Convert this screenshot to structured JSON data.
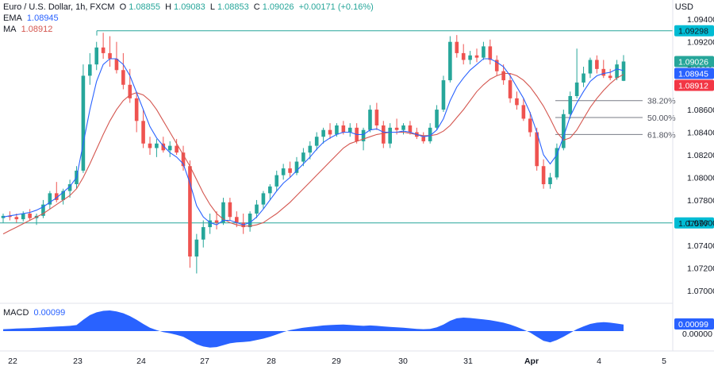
{
  "header": {
    "symbol": "Euro / U.S. Dollar, 1h, FXCM",
    "o_label": "O",
    "o_value": "1.08855",
    "h_label": "H",
    "h_value": "1.09083",
    "l_label": "L",
    "l_value": "1.08853",
    "c_label": "C",
    "c_value": "1.09026",
    "change": "+0.00171 (+0.16%)",
    "ema_label": "EMA",
    "ema_value": "1.08945",
    "ma_label": "MA",
    "ma_value": "1.08912"
  },
  "macd": {
    "label": "MACD",
    "value": "0.00099"
  },
  "chart_data": {
    "type": "candlestick",
    "currency": "USD",
    "y_ticks": [
      "1.09400",
      "1.09200",
      "1.09000",
      "1.08800",
      "1.08600",
      "1.08400",
      "1.08200",
      "1.08000",
      "1.07800",
      "1.07600",
      "1.07400",
      "1.07200",
      "1.07000"
    ],
    "ylim": [
      1.069,
      1.095
    ],
    "x_labels": [
      "22",
      "23",
      "24",
      "27",
      "28",
      "29",
      "30",
      "31",
      "Apr",
      "4",
      "5"
    ],
    "last_price_badges": [
      "1.09026",
      "1.08945",
      "1.08912"
    ],
    "horizontal_levels": [
      {
        "label": "1.09298",
        "value": 1.09298
      },
      {
        "label": "1.07597",
        "value": 1.07597
      }
    ],
    "fibonacci_levels": [
      {
        "label": "38.20%",
        "value": 1.0868
      },
      {
        "label": "50.00%",
        "value": 1.0853
      },
      {
        "label": "61.80%",
        "value": 1.0838
      }
    ],
    "macd_ticks": [
      "0.00000"
    ],
    "ohlc": [
      [
        1.0764,
        1.0768,
        1.076,
        1.0766
      ],
      [
        1.0766,
        1.077,
        1.0762,
        1.0765
      ],
      [
        1.0765,
        1.0768,
        1.076,
        1.0763
      ],
      [
        1.0763,
        1.077,
        1.0761,
        1.0768
      ],
      [
        1.0768,
        1.0772,
        1.0762,
        1.0764
      ],
      [
        1.0764,
        1.0768,
        1.0758,
        1.0766
      ],
      [
        1.0766,
        1.078,
        1.0764,
        1.0776
      ],
      [
        1.0776,
        1.0788,
        1.0772,
        1.0786
      ],
      [
        1.0786,
        1.0796,
        1.0778,
        1.078
      ],
      [
        1.078,
        1.079,
        1.0776,
        1.0788
      ],
      [
        1.0788,
        1.0798,
        1.0782,
        1.0794
      ],
      [
        1.0794,
        1.081,
        1.079,
        1.0806
      ],
      [
        1.0806,
        1.09,
        1.0804,
        1.089
      ],
      [
        1.089,
        1.091,
        1.0882,
        1.09
      ],
      [
        1.09,
        1.092,
        1.0895,
        1.0915
      ],
      [
        1.0915,
        1.0928,
        1.0905,
        1.091
      ],
      [
        1.091,
        1.0925,
        1.0898,
        1.0905
      ],
      [
        1.0905,
        1.092,
        1.0892,
        1.0895
      ],
      [
        1.0895,
        1.091,
        1.0878,
        1.0882
      ],
      [
        1.0882,
        1.0896,
        1.0866,
        1.087
      ],
      [
        1.087,
        1.0876,
        1.084,
        1.085
      ],
      [
        1.085,
        1.086,
        1.0826,
        1.083
      ],
      [
        1.083,
        1.0836,
        1.082,
        1.0826
      ],
      [
        1.0826,
        1.0834,
        1.0818,
        1.083
      ],
      [
        1.083,
        1.0836,
        1.0822,
        1.0824
      ],
      [
        1.0824,
        1.0832,
        1.0818,
        1.0828
      ],
      [
        1.0828,
        1.0834,
        1.082,
        1.0822
      ],
      [
        1.0822,
        1.0828,
        1.0806,
        1.081
      ],
      [
        1.081,
        1.0815,
        1.072,
        1.073
      ],
      [
        1.073,
        1.075,
        1.0715,
        1.0745
      ],
      [
        1.0745,
        1.0762,
        1.0738,
        1.0756
      ],
      [
        1.0756,
        1.0768,
        1.075,
        1.0762
      ],
      [
        1.0762,
        1.077,
        1.0754,
        1.076
      ],
      [
        1.076,
        1.0782,
        1.0758,
        1.0778
      ],
      [
        1.0778,
        1.0782,
        1.0762,
        1.0765
      ],
      [
        1.0765,
        1.077,
        1.0756,
        1.076
      ],
      [
        1.076,
        1.0768,
        1.075,
        1.0756
      ],
      [
        1.0756,
        1.077,
        1.0752,
        1.0768
      ],
      [
        1.0768,
        1.078,
        1.0764,
        1.0776
      ],
      [
        1.0776,
        1.0788,
        1.0772,
        1.0786
      ],
      [
        1.0786,
        1.0794,
        1.078,
        1.0792
      ],
      [
        1.0792,
        1.0806,
        1.0788,
        1.0802
      ],
      [
        1.0802,
        1.0812,
        1.0798,
        1.0808
      ],
      [
        1.0808,
        1.0814,
        1.08,
        1.0804
      ],
      [
        1.0804,
        1.0818,
        1.0802,
        1.0814
      ],
      [
        1.0814,
        1.0826,
        1.081,
        1.0822
      ],
      [
        1.0822,
        1.0832,
        1.0816,
        1.0828
      ],
      [
        1.0828,
        1.084,
        1.0824,
        1.0836
      ],
      [
        1.0836,
        1.0844,
        1.083,
        1.0842
      ],
      [
        1.0842,
        1.0848,
        1.0834,
        1.0838
      ],
      [
        1.0838,
        1.0848,
        1.0836,
        1.0846
      ],
      [
        1.0846,
        1.085,
        1.0838,
        1.084
      ],
      [
        1.084,
        1.0848,
        1.0836,
        1.0844
      ],
      [
        1.0844,
        1.0848,
        1.083,
        1.0832
      ],
      [
        1.0832,
        1.0844,
        1.0824,
        1.0842
      ],
      [
        1.0842,
        1.0864,
        1.084,
        1.086
      ],
      [
        1.086,
        1.0866,
        1.0842,
        1.0846
      ],
      [
        1.0846,
        1.085,
        1.0826,
        1.083
      ],
      [
        1.083,
        1.0848,
        1.0826,
        1.0844
      ],
      [
        1.0844,
        1.0852,
        1.0838,
        1.0842
      ],
      [
        1.0842,
        1.0848,
        1.0838,
        1.0846
      ],
      [
        1.0846,
        1.085,
        1.0838,
        1.084
      ],
      [
        1.084,
        1.0844,
        1.0834,
        1.0836
      ],
      [
        1.0836,
        1.084,
        1.083,
        1.0832
      ],
      [
        1.0832,
        1.0848,
        1.083,
        1.0844
      ],
      [
        1.0844,
        1.0864,
        1.0842,
        1.086
      ],
      [
        1.086,
        1.089,
        1.0858,
        1.0886
      ],
      [
        1.0886,
        1.0925,
        1.0884,
        1.092
      ],
      [
        1.092,
        1.0926,
        1.0906,
        1.091
      ],
      [
        1.091,
        1.0918,
        1.09,
        1.0904
      ],
      [
        1.0904,
        1.0912,
        1.09,
        1.0908
      ],
      [
        1.0908,
        1.0914,
        1.0902,
        1.0906
      ],
      [
        1.0906,
        1.092,
        1.0904,
        1.0916
      ],
      [
        1.0916,
        1.0922,
        1.09,
        1.0904
      ],
      [
        1.0904,
        1.0908,
        1.089,
        1.0894
      ],
      [
        1.0894,
        1.09,
        1.0882,
        1.0886
      ],
      [
        1.0886,
        1.0892,
        1.0866,
        1.087
      ],
      [
        1.087,
        1.0876,
        1.086,
        1.0864
      ],
      [
        1.0864,
        1.087,
        1.085,
        1.0852
      ],
      [
        1.0852,
        1.0858,
        1.0836,
        1.084
      ],
      [
        1.084,
        1.0844,
        1.0806,
        1.081
      ],
      [
        1.081,
        1.0816,
        1.079,
        1.0794
      ],
      [
        1.0794,
        1.0804,
        1.079,
        1.08
      ],
      [
        1.08,
        1.083,
        1.0798,
        1.0826
      ],
      [
        1.0826,
        1.086,
        1.0824,
        1.0856
      ],
      [
        1.0856,
        1.0876,
        1.0852,
        1.0872
      ],
      [
        1.0872,
        1.0914,
        1.087,
        1.0884
      ],
      [
        1.0884,
        1.0898,
        1.088,
        1.0892
      ],
      [
        1.0892,
        1.0906,
        1.0888,
        1.0904
      ],
      [
        1.0904,
        1.0908,
        1.0892,
        1.0896
      ],
      [
        1.0896,
        1.0904,
        1.0888,
        1.089
      ],
      [
        1.089,
        1.0896,
        1.0886,
        1.0888
      ],
      [
        1.0888,
        1.0904,
        1.0886,
        1.09
      ],
      [
        1.08855,
        1.09083,
        1.08853,
        1.09026
      ]
    ],
    "ema": [
      1.0765,
      1.0766,
      1.0767,
      1.0768,
      1.0769,
      1.0771,
      1.0774,
      1.0778,
      1.0782,
      1.0787,
      1.0792,
      1.08,
      1.083,
      1.086,
      1.0885,
      1.09,
      1.0905,
      1.0905,
      1.09,
      1.089,
      1.0875,
      1.086,
      1.0845,
      1.0835,
      1.0828,
      1.0822,
      1.0818,
      1.0812,
      1.0795,
      1.0775,
      1.0765,
      1.076,
      1.0758,
      1.0762,
      1.0762,
      1.076,
      1.0758,
      1.076,
      1.0765,
      1.0772,
      1.078,
      1.0788,
      1.0795,
      1.08,
      1.0806,
      1.0812,
      1.0818,
      1.0825,
      1.0831,
      1.0835,
      1.0838,
      1.084,
      1.084,
      1.0838,
      1.0838,
      1.0842,
      1.0843,
      1.084,
      1.084,
      1.084,
      1.0841,
      1.084,
      1.0838,
      1.0836,
      1.0837,
      1.0842,
      1.0852,
      1.0868,
      1.088,
      1.0888,
      1.0895,
      1.09,
      1.0905,
      1.0905,
      1.0902,
      1.0898,
      1.089,
      1.088,
      1.087,
      1.0857,
      1.084,
      1.082,
      1.0812,
      1.082,
      1.0836,
      1.0854,
      1.0866,
      1.0876,
      1.0885,
      1.089,
      1.0892,
      1.0893,
      1.0896,
      1.08945
    ],
    "ma": [
      1.075,
      1.0753,
      1.0756,
      1.0759,
      1.0762,
      1.0765,
      1.0768,
      1.0772,
      1.0776,
      1.078,
      1.0784,
      1.079,
      1.08,
      1.0812,
      1.0825,
      1.0838,
      1.085,
      1.086,
      1.0868,
      1.0873,
      1.0875,
      1.0873,
      1.0868,
      1.086,
      1.085,
      1.084,
      1.083,
      1.082,
      1.081,
      1.0798,
      1.0786,
      1.0776,
      1.0768,
      1.0763,
      1.076,
      1.0758,
      1.0757,
      1.0757,
      1.0758,
      1.076,
      1.0764,
      1.0768,
      1.0773,
      1.0778,
      1.0784,
      1.079,
      1.0796,
      1.0802,
      1.0808,
      1.0814,
      1.082,
      1.0826,
      1.083,
      1.0832,
      1.0834,
      1.0836,
      1.0838,
      1.0839,
      1.084,
      1.084,
      1.084,
      1.0839,
      1.0838,
      1.0837,
      1.0837,
      1.0838,
      1.0841,
      1.0846,
      1.0853,
      1.086,
      1.0868,
      1.0876,
      1.0882,
      1.0887,
      1.089,
      1.0892,
      1.0892,
      1.089,
      1.0886,
      1.088,
      1.0872,
      1.0863,
      1.0852,
      1.084,
      1.0833,
      1.0835,
      1.0842,
      1.0852,
      1.0862,
      1.087,
      1.0877,
      1.0883,
      1.0888,
      1.08912
    ],
    "macd_hist": [
      0.0001,
      0.00012,
      0.00014,
      0.00015,
      0.00016,
      0.00018,
      0.0002,
      0.00022,
      0.00024,
      0.00026,
      0.00028,
      0.00032,
      0.0006,
      0.00085,
      0.001,
      0.00108,
      0.0011,
      0.00105,
      0.00095,
      0.0008,
      0.0006,
      0.00038,
      0.00018,
      5e-05,
      -5e-05,
      -0.00012,
      -0.0002,
      -0.0003,
      -0.0005,
      -0.0007,
      -0.00082,
      -0.00088,
      -0.00085,
      -0.00075,
      -0.00065,
      -0.0006,
      -0.00058,
      -0.00055,
      -0.00048,
      -0.0004,
      -0.0003,
      -0.00018,
      -5e-05,
      5e-05,
      0.00012,
      0.00018,
      0.00022,
      0.00026,
      0.0003,
      0.00032,
      0.00034,
      0.00035,
      0.00033,
      0.0003,
      0.00028,
      0.0003,
      0.00028,
      0.00025,
      0.00022,
      0.0002,
      0.00018,
      0.00015,
      0.00012,
      0.0001,
      0.00012,
      0.0002,
      0.00035,
      0.00055,
      0.00068,
      0.00072,
      0.0007,
      0.00066,
      0.00062,
      0.00058,
      0.00052,
      0.00045,
      0.00035,
      0.00022,
      8e-05,
      -8e-05,
      -0.0003,
      -0.00052,
      -0.0006,
      -0.00048,
      -0.0003,
      -0.0001,
      0.0001,
      0.00025,
      0.00038,
      0.00045,
      0.00048,
      0.00045,
      0.0004,
      0.00035
    ]
  },
  "colors": {
    "up": "#26a69a",
    "down": "#ef5350",
    "ema": "#2962ff",
    "ma": "#d4564f",
    "level": "#26a69a",
    "fib": "#787b86",
    "macd": "#2962ff"
  }
}
